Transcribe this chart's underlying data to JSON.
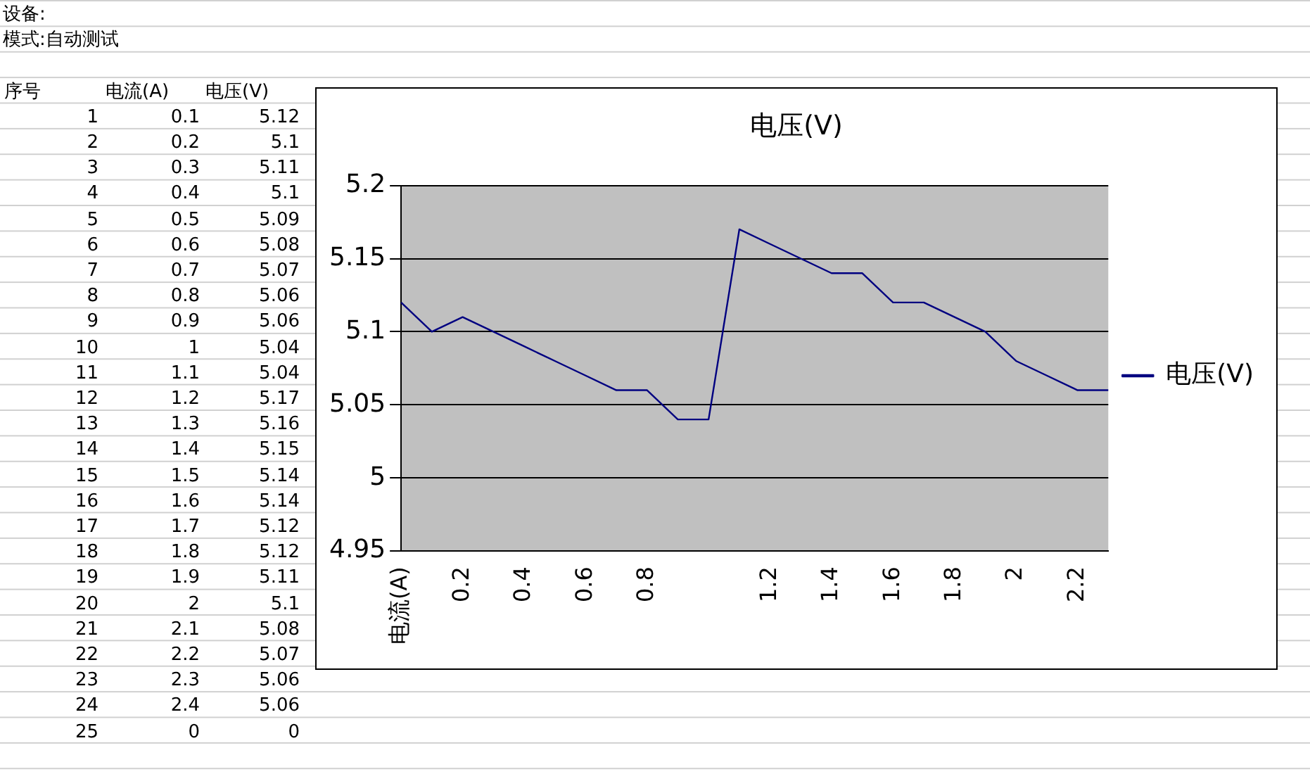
{
  "chart_data": {
    "type": "line",
    "title": "电压(V)",
    "categories": [
      "电流(A)",
      null,
      "0.2",
      null,
      "0.4",
      null,
      "0.6",
      null,
      "0.8",
      null,
      null,
      null,
      "1.2",
      null,
      "1.4",
      null,
      "1.6",
      null,
      "1.8",
      null,
      "2",
      null,
      "2.2",
      null
    ],
    "series": [
      {
        "name": "电压(V)",
        "color": "#000080",
        "values": [
          5.12,
          5.1,
          5.11,
          5.1,
          5.09,
          5.08,
          5.07,
          5.06,
          5.06,
          5.04,
          5.04,
          5.17,
          5.16,
          5.15,
          5.14,
          5.14,
          5.12,
          5.12,
          5.11,
          5.1,
          5.08,
          5.07,
          5.06,
          5.06
        ]
      }
    ],
    "ylim": [
      4.95,
      5.2
    ],
    "yticks": [
      4.95,
      5,
      5.05,
      5.1,
      5.15,
      5.2
    ],
    "grid": "y",
    "legend": "right",
    "marker": "none",
    "line_style": "solid",
    "annotations": [
      "设备:",
      "模式:自动测试",
      "序号",
      "电流(A)",
      "电压(V)",
      "1",
      "0.1",
      "5.12",
      "2",
      "0.2",
      "5.1",
      "3",
      "0.3",
      "5.11",
      "4",
      "0.4",
      "5.1",
      "5",
      "0.5",
      "5.09",
      "6",
      "0.6",
      "5.08",
      "7",
      "0.7",
      "5.07",
      "8",
      "0.8",
      "5.06",
      "9",
      "0.9",
      "5.06",
      "10",
      "1",
      "5.04",
      "11",
      "1.1",
      "5.04",
      "12",
      "1.2",
      "5.17",
      "13",
      "1.3",
      "5.16",
      "14",
      "1.4",
      "5.15",
      "15",
      "1.5",
      "5.14",
      "16",
      "1.6",
      "5.14",
      "17",
      "1.7",
      "5.12",
      "18",
      "1.8",
      "5.12",
      "19",
      "1.9",
      "5.11",
      "20",
      "2",
      "5.1",
      "21",
      "2.1",
      "5.08",
      "22",
      "2.2",
      "5.07",
      "23",
      "2.3",
      "5.06",
      "24",
      "2.4",
      "5.06",
      "25",
      "0",
      "0"
    ]
  }
}
